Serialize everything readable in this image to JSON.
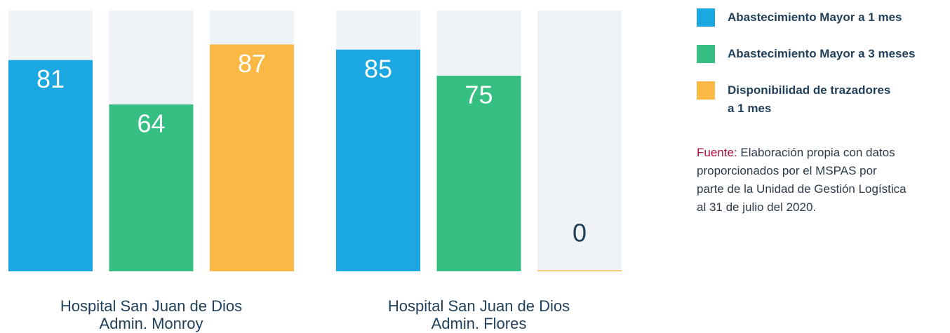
{
  "chart_data": {
    "type": "bar",
    "categories": [
      "Hospital San Juan de Dios\nAdmin. Monroy",
      "Hospital San Juan de Dios\nAdmin. Flores"
    ],
    "series": [
      {
        "name": "Abastecimiento Mayor a 1 mes",
        "color": "#1ba7e1",
        "values": [
          81,
          85
        ]
      },
      {
        "name": "Abastecimiento Mayor a 3 meses",
        "color": "#35bf82",
        "values": [
          64,
          75
        ]
      },
      {
        "name": "Disponibilidad de trazadores\na 1 mes",
        "color": "#fbb845",
        "values": [
          87,
          0
        ]
      }
    ],
    "ylim": [
      0,
      100
    ],
    "note_label": "Fuente:",
    "note": "Elaboración propia con datos proporcionados por el MSPAS por parte de la Unidad de Gestión Logística al 31 de julio del 2020."
  }
}
